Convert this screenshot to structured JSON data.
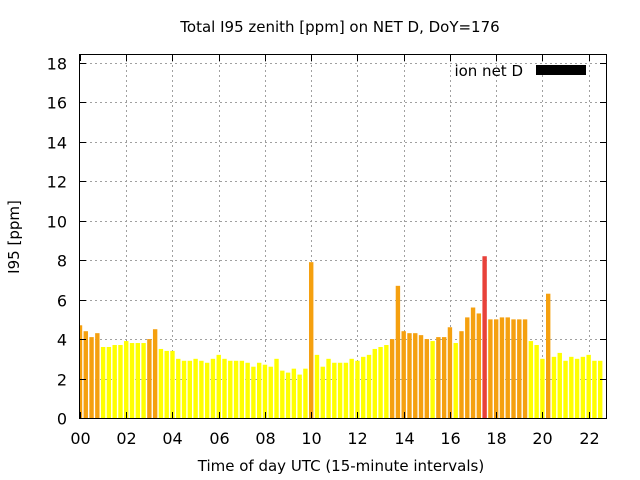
{
  "chart_data": {
    "type": "bar",
    "title": "Total I95 zenith [ppm] on NET D, DoY=176",
    "xlabel": "Time of day UTC (15-minute intervals)",
    "ylabel": "I95 [ppm]",
    "ylim": [
      0,
      18.4
    ],
    "xlim": [
      0,
      22.75
    ],
    "grid": true,
    "legend_placement": "top-right",
    "x_tick_labels": [
      "00",
      "02",
      "04",
      "06",
      "08",
      "10",
      "12",
      "14",
      "16",
      "18",
      "20",
      "22"
    ],
    "y_tick_labels": [
      "0",
      "2",
      "4",
      "6",
      "8",
      "10",
      "12",
      "14",
      "16",
      "18"
    ],
    "colors": {
      "low": "#ffff00",
      "mid": "#f5a00f",
      "high": "#e8413a",
      "legend": "#000000",
      "grid": "#a0a0a0"
    },
    "series": [
      {
        "name": "ion net D",
        "bar_width_hours": 0.19,
        "x": [
          0.0,
          0.25,
          0.5,
          0.75,
          1.0,
          1.25,
          1.5,
          1.75,
          2.0,
          2.25,
          2.5,
          2.75,
          3.0,
          3.25,
          3.5,
          3.75,
          4.0,
          4.25,
          4.5,
          4.75,
          5.0,
          5.25,
          5.5,
          5.75,
          6.0,
          6.25,
          6.5,
          6.75,
          7.0,
          7.25,
          7.5,
          7.75,
          8.0,
          8.25,
          8.5,
          8.75,
          9.0,
          9.25,
          9.5,
          9.75,
          10.0,
          10.25,
          10.5,
          10.75,
          11.0,
          11.25,
          11.5,
          11.75,
          12.0,
          12.25,
          12.5,
          12.75,
          13.0,
          13.25,
          13.5,
          13.75,
          14.0,
          14.25,
          14.5,
          14.75,
          15.0,
          15.25,
          15.5,
          15.75,
          16.0,
          16.25,
          16.5,
          16.75,
          17.0,
          17.25,
          17.5,
          17.75,
          18.0,
          18.25,
          18.5,
          18.75,
          19.0,
          19.25,
          19.5,
          19.75,
          20.0,
          20.25,
          20.5,
          20.75,
          21.0,
          21.25,
          21.5,
          21.75,
          22.0,
          22.25,
          22.5
        ],
        "values": [
          4.7,
          4.4,
          4.1,
          4.3,
          3.6,
          3.6,
          3.7,
          3.7,
          3.9,
          3.8,
          3.8,
          3.8,
          4.0,
          4.5,
          3.5,
          3.4,
          3.4,
          3.0,
          2.9,
          2.9,
          3.0,
          2.9,
          2.8,
          3.0,
          3.2,
          3.0,
          2.9,
          2.9,
          2.9,
          2.8,
          2.6,
          2.8,
          2.7,
          2.6,
          3.0,
          2.4,
          2.3,
          2.5,
          2.2,
          2.5,
          7.9,
          3.2,
          2.6,
          3.0,
          2.8,
          2.8,
          2.8,
          3.0,
          2.9,
          3.1,
          3.2,
          3.5,
          3.6,
          3.7,
          4.0,
          6.7,
          4.4,
          4.3,
          4.3,
          4.2,
          4.0,
          3.9,
          4.1,
          4.1,
          4.6,
          3.8,
          4.4,
          5.1,
          5.6,
          5.3,
          8.2,
          5.0,
          5.0,
          5.1,
          5.1,
          5.0,
          5.0,
          5.0,
          3.9,
          3.7,
          3.0,
          6.3,
          3.1,
          3.3,
          2.9,
          3.1,
          3.0,
          3.1,
          3.2,
          2.9,
          2.9
        ]
      }
    ]
  }
}
